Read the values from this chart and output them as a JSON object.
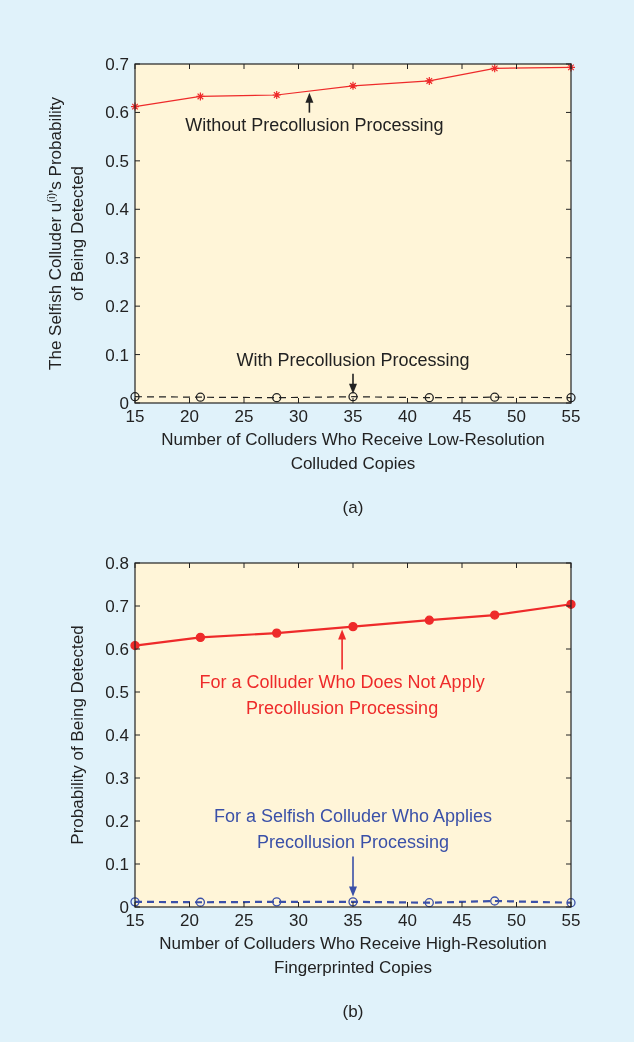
{
  "chart_data": [
    {
      "type": "line",
      "xlabel": "Number of Colluders Who Receive Low-Resolution Colluded Copies",
      "ylabel": "The Selfish Colluder u$^{(i)}$'s Probability of Being Detected",
      "x": [
        15,
        21,
        28,
        35,
        42,
        48,
        55
      ],
      "xlim": [
        15,
        55
      ],
      "xticks": [
        15,
        20,
        25,
        30,
        35,
        40,
        45,
        50,
        55
      ],
      "ylim": [
        0,
        0.7
      ],
      "yticks": [
        0,
        0.1,
        0.2,
        0.3,
        0.4,
        0.5,
        0.6,
        0.7
      ],
      "grid": false,
      "series": [
        {
          "color": "#ee2a2a",
          "values": [
            0.612,
            0.633,
            0.636,
            0.655,
            0.665,
            0.691,
            0.693
          ],
          "marker": "cross",
          "line_style": "solid"
        },
        {
          "color": "#222222",
          "values": [
            0.013,
            0.012,
            0.011,
            0.013,
            0.011,
            0.012,
            0.011
          ],
          "marker": "circle",
          "line_style": "dashed"
        }
      ],
      "annotations": [
        {
          "text": "Without Precollusion Processing",
          "x": 31,
          "y": 0.645
        },
        {
          "text": "With Precollusion Processing",
          "x": 35,
          "y": 0.015
        },
        "(a)"
      ]
    },
    {
      "type": "line",
      "xlabel": "Number of Colluders Who Receive High-Resolution Fingerprinted Copies",
      "ylabel": "Probability of Being Detected",
      "x": [
        15,
        21,
        28,
        35,
        42,
        48,
        55
      ],
      "xlim": [
        15,
        55
      ],
      "xticks": [
        15,
        20,
        25,
        30,
        35,
        40,
        45,
        50,
        55
      ],
      "ylim": [
        0,
        0.8
      ],
      "yticks": [
        0,
        0.1,
        0.2,
        0.3,
        0.4,
        0.5,
        0.6,
        0.7,
        0.8
      ],
      "grid": false,
      "series": [
        {
          "color": "#ee2a2a",
          "values": [
            0.608,
            0.627,
            0.637,
            0.652,
            0.667,
            0.679,
            0.704
          ],
          "marker": "circle",
          "line_style": "solid"
        },
        {
          "color": "#3a50a8",
          "values": [
            0.012,
            0.011,
            0.012,
            0.012,
            0.01,
            0.014,
            0.01
          ],
          "marker": "circle",
          "line_style": "dashed"
        }
      ],
      "annotations": [
        {
          "text": "For a Colluder Who Does Not Apply Precollusion Processing",
          "x": 34,
          "y": 0.65
        },
        {
          "text": "For a Selfish Colluder Who Applies Precollusion Processing",
          "x": 35,
          "y": 0.02
        },
        "(b)"
      ]
    }
  ]
}
